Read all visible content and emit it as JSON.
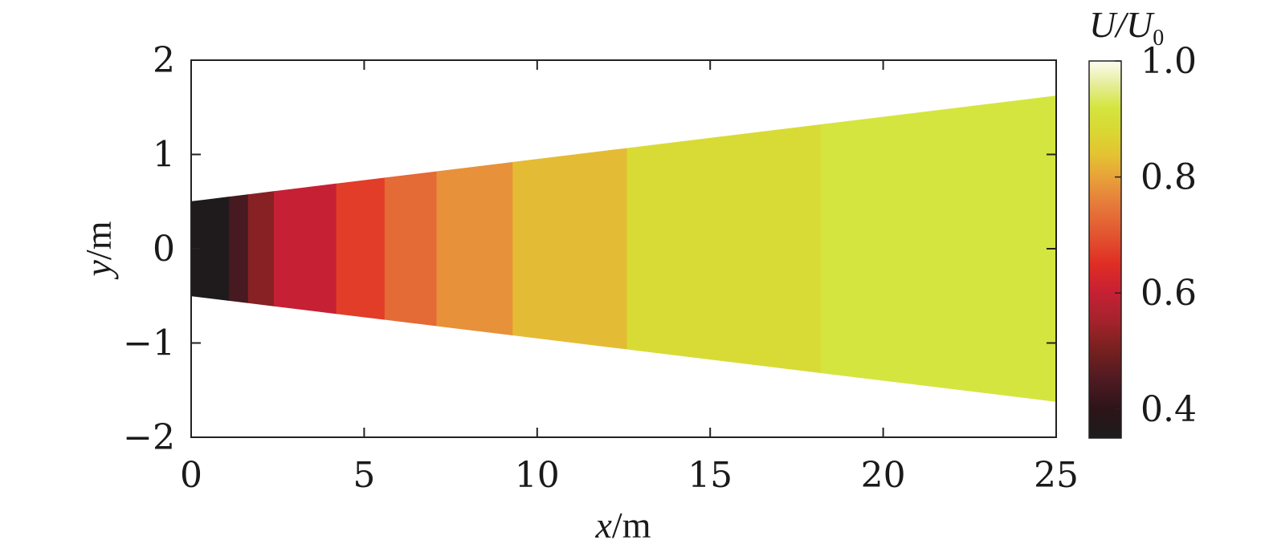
{
  "chart_data": {
    "type": "heatmap",
    "title": "",
    "xlabel": {
      "var": "x",
      "unit": "/m"
    },
    "ylabel": {
      "var": "y",
      "unit": "/m"
    },
    "xlim": [
      0,
      25
    ],
    "ylim": [
      -2,
      2
    ],
    "xticks": [
      0,
      5,
      10,
      15,
      20,
      25
    ],
    "xtick_labels": [
      "0",
      "5",
      "10",
      "15",
      "20",
      "25"
    ],
    "yticks": [
      2,
      1,
      0,
      -1,
      -2
    ],
    "ytick_labels": [
      "2",
      "1",
      "0",
      "−1",
      "−2"
    ],
    "grid": false,
    "boundary": {
      "description": "wake half-width, symmetric about y = 0",
      "x": [
        0,
        25
      ],
      "half_width": [
        0.5,
        1.62
      ]
    },
    "segments": [
      {
        "x0": 0.0,
        "x1": 1.1,
        "value": 0.36
      },
      {
        "x0": 1.1,
        "x1": 1.65,
        "value": 0.44
      },
      {
        "x0": 1.65,
        "x1": 2.4,
        "value": 0.52
      },
      {
        "x0": 2.4,
        "x1": 4.2,
        "value": 0.6
      },
      {
        "x0": 4.2,
        "x1": 5.6,
        "value": 0.67
      },
      {
        "x0": 5.6,
        "x1": 7.1,
        "value": 0.73
      },
      {
        "x0": 7.1,
        "x1": 9.3,
        "value": 0.78
      },
      {
        "x0": 9.3,
        "x1": 12.6,
        "value": 0.83
      },
      {
        "x0": 12.6,
        "x1": 18.2,
        "value": 0.89
      },
      {
        "x0": 18.2,
        "x1": 25.0,
        "value": 0.92
      }
    ],
    "colorbar": {
      "title": {
        "main": "U/U",
        "sub": "0"
      },
      "range": [
        0.35,
        1.0
      ],
      "ticks": [
        1.0,
        0.8,
        0.6,
        0.4
      ],
      "tick_labels": [
        "1.0",
        "0.8",
        "0.6",
        "0.4"
      ],
      "levels": [
        {
          "value": 0.35,
          "color": "#1c1c1c"
        },
        {
          "value": 0.4,
          "color": "#2d1419"
        },
        {
          "value": 0.45,
          "color": "#4e1a22"
        },
        {
          "value": 0.5,
          "color": "#75201f"
        },
        {
          "value": 0.55,
          "color": "#a2232b"
        },
        {
          "value": 0.6,
          "color": "#c62034"
        },
        {
          "value": 0.65,
          "color": "#e02d24"
        },
        {
          "value": 0.7,
          "color": "#e25530"
        },
        {
          "value": 0.75,
          "color": "#e6783a"
        },
        {
          "value": 0.8,
          "color": "#e8a23a"
        },
        {
          "value": 0.84,
          "color": "#e3c432"
        },
        {
          "value": 0.88,
          "color": "#d9d833"
        },
        {
          "value": 0.92,
          "color": "#d4e53f"
        },
        {
          "value": 0.96,
          "color": "#e6ed9a"
        },
        {
          "value": 1.0,
          "color": "#fcfcf0"
        }
      ]
    }
  }
}
